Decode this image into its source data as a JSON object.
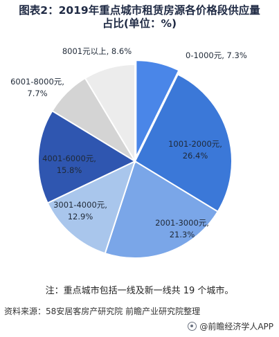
{
  "header": {
    "title_line1": "图表2：2019年重点城市租赁房源各价格段供应量",
    "title_line2": "占比(单位：%)"
  },
  "chart_data": {
    "type": "pie",
    "title": "图表2：2019年重点城市租赁房源各价格段供应量占比(单位：%)",
    "categories": [
      "0-1000元",
      "1001-2000元",
      "2001-3000元",
      "3001-4000元",
      "4001-6000元",
      "6001-8000元",
      "8001元以上"
    ],
    "values": [
      7.3,
      26.4,
      21.3,
      12.9,
      15.8,
      7.7,
      8.6
    ],
    "unit": "%",
    "colors": [
      "#4a86e8",
      "#3b78d8",
      "#7aa6e8",
      "#a9c6ec",
      "#2f56b0",
      "#d4d4d4",
      "#ececec"
    ]
  },
  "note": "注：重点城市包括一线及新一线共 19 个城市。",
  "source": "资料来源：58安居客房产研究院 前瞻产业研究院整理",
  "footer": {
    "brand": "@前瞻经济学人APP",
    "icon": "brand-icon"
  }
}
